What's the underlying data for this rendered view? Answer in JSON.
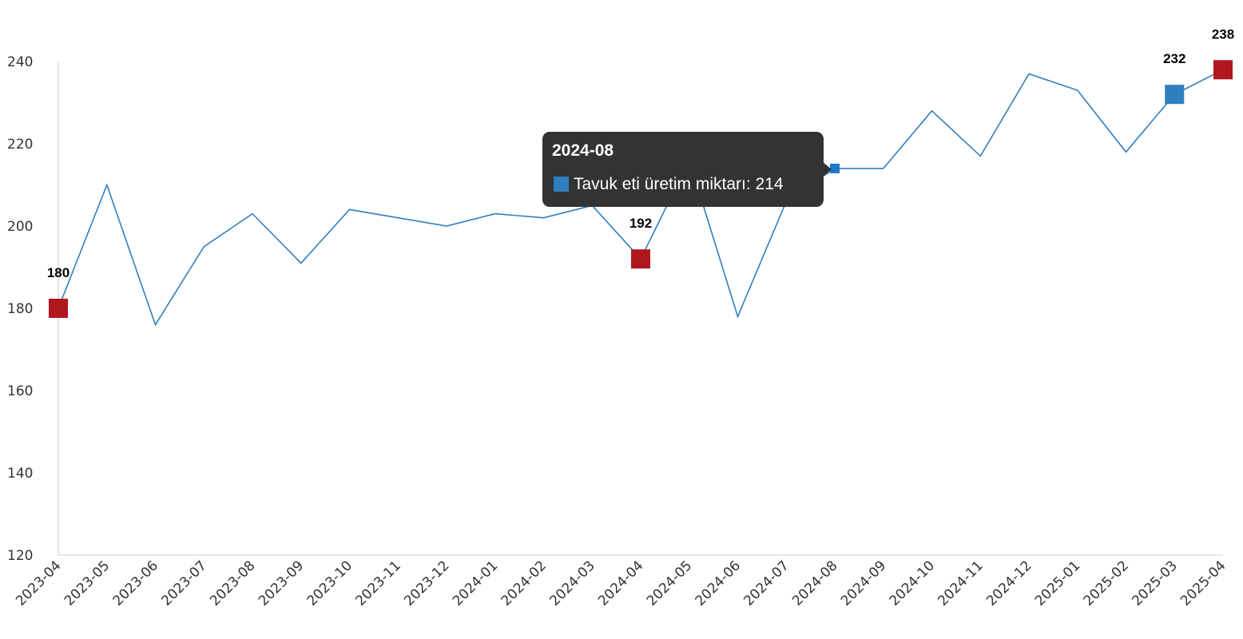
{
  "chart_data": {
    "type": "line",
    "categories": [
      "2023-04",
      "2023-05",
      "2023-06",
      "2023-07",
      "2023-08",
      "2023-09",
      "2023-10",
      "2023-11",
      "2023-12",
      "2024-01",
      "2024-02",
      "2024-03",
      "2024-04",
      "2024-05",
      "2024-06",
      "2024-07",
      "2024-08",
      "2024-09",
      "2024-10",
      "2024-11",
      "2024-12",
      "2025-01",
      "2025-02",
      "2025-03",
      "2025-04"
    ],
    "series": [
      {
        "name": "Tavuk eti üretim miktarı",
        "values": [
          180,
          210,
          176,
          195,
          203,
          191,
          204,
          202,
          200,
          203,
          202,
          205,
          192,
          216,
          178,
          206,
          214,
          214,
          228,
          217,
          237,
          233,
          218,
          232,
          238
        ],
        "color": "#2f7ebf"
      }
    ],
    "highlighted_points": [
      {
        "category": "2023-04",
        "value": 180,
        "label": "180",
        "color": "#b0161e"
      },
      {
        "category": "2024-04",
        "value": 192,
        "label": "192",
        "color": "#b0161e"
      },
      {
        "category": "2025-03",
        "value": 232,
        "label": "232",
        "color": "#2f7ebf"
      },
      {
        "category": "2025-04",
        "value": 238,
        "label": "238",
        "color": "#b0161e"
      }
    ],
    "y_ticks": [
      "120",
      "140",
      "160",
      "180",
      "200",
      "220",
      "240"
    ],
    "ylim": [
      120,
      240
    ],
    "title": "",
    "xlabel": "",
    "ylabel": "",
    "grid": false,
    "legend": "none"
  },
  "tooltip": {
    "title": "2024-08",
    "series_name": "Tavuk eti üretim miktarı",
    "value": "214",
    "text": "Tavuk eti üretim miktarı: 214",
    "swatch_color": "#2f7ebf"
  }
}
